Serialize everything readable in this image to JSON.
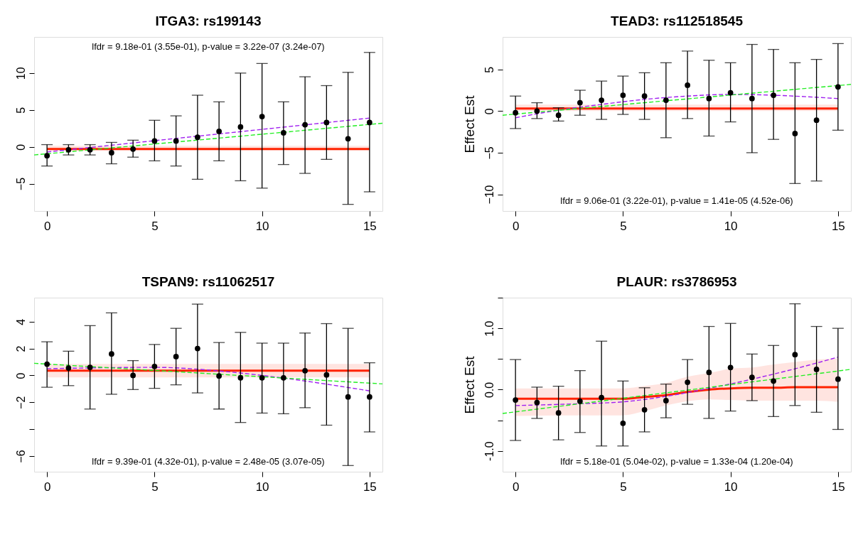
{
  "chart_data": [
    {
      "type": "scatter",
      "title": "ITGA3: rs199143",
      "x": [
        0,
        1,
        2,
        3,
        4,
        5,
        6,
        7,
        8,
        9,
        10,
        11,
        12,
        13,
        14,
        15
      ],
      "xlim": [
        -0.6,
        15.6
      ],
      "xticks": [
        0,
        5,
        10,
        15
      ],
      "ylim": [
        -8.7,
        14.9
      ],
      "yticks": [
        -5,
        0,
        5,
        10
      ],
      "grid": false,
      "annotations": [
        "lfdr = 9.18e-01 (3.55e-01), p-value = 3.22e-07 (3.24e-07)"
      ],
      "series": [
        {
          "type": "line",
          "color": "#ff2200",
          "x": [
            0,
            15
          ],
          "values": [
            -0.3,
            -0.3
          ],
          "lower": [
            -0.5,
            -0.5
          ],
          "upper": [
            0.15,
            0.15
          ]
        },
        {
          "type": "line",
          "color": "#a020f0",
          "line_style": "dashed",
          "x": [
            0,
            15
          ],
          "values": [
            -0.7,
            3.9
          ]
        },
        {
          "type": "line",
          "color": "#22ee22",
          "line_style": "dashed",
          "x": [
            -0.6,
            15.6
          ],
          "values": [
            -1.1,
            3.2
          ]
        },
        {
          "color": "#000000",
          "marker": "circle",
          "values": [
            -1.2,
            -0.4,
            -0.4,
            -0.8,
            -0.3,
            0.8,
            0.8,
            1.3,
            2.1,
            2.7,
            4.1,
            1.9,
            3.0,
            3.3,
            1.1,
            3.3
          ],
          "errors": [
            [
              -2.6,
              0.3
            ],
            [
              -1.1,
              0.3
            ],
            [
              -1.1,
              0.3
            ],
            [
              -2.3,
              0.6
            ],
            [
              -1.4,
              0.9
            ],
            [
              -1.9,
              3.6
            ],
            [
              -2.6,
              4.2
            ],
            [
              -4.4,
              7.0
            ],
            [
              -1.9,
              6.1
            ],
            [
              -4.6,
              10.0
            ],
            [
              -5.6,
              11.3
            ],
            [
              -2.4,
              6.1
            ],
            [
              -3.6,
              9.5
            ],
            [
              -1.7,
              8.3
            ],
            [
              -7.8,
              10.1
            ],
            [
              -6.1,
              12.8
            ]
          ]
        }
      ]
    },
    {
      "type": "scatter",
      "title": "TEAD3: rs112518545",
      "ylabel": "Effect Est",
      "x": [
        0,
        1,
        2,
        3,
        4,
        5,
        6,
        7,
        8,
        9,
        10,
        11,
        12,
        13,
        14,
        15
      ],
      "xlim": [
        -0.6,
        15.6
      ],
      "xticks": [
        0,
        5,
        10,
        15
      ],
      "ylim": [
        -12.0,
        8.9
      ],
      "yticks": [
        -10,
        -5,
        0,
        5
      ],
      "grid": false,
      "annotations": [
        "lfdr = 9.06e-01 (3.22e-01), p-value = 1.41e-05 (4.52e-06)"
      ],
      "series": [
        {
          "type": "line",
          "color": "#ff2200",
          "x": [
            0,
            15
          ],
          "values": [
            0.3,
            0.3
          ],
          "lower": [
            0.0,
            0.0
          ],
          "upper": [
            0.77,
            0.77
          ]
        },
        {
          "type": "line",
          "color": "#a020f0",
          "line_style": "dashed",
          "x": [
            0,
            2,
            4,
            6,
            8,
            10,
            12,
            15
          ],
          "values": [
            -0.8,
            0.1,
            0.8,
            1.4,
            1.8,
            2.0,
            1.9,
            1.5
          ]
        },
        {
          "type": "line",
          "color": "#22ee22",
          "line_style": "dashed",
          "x": [
            -0.6,
            15.6
          ],
          "values": [
            -0.5,
            3.2
          ]
        },
        {
          "color": "#000000",
          "marker": "circle",
          "values": [
            -0.2,
            0.0,
            -0.5,
            1.0,
            1.3,
            1.9,
            1.8,
            1.3,
            3.1,
            1.5,
            2.2,
            1.5,
            1.9,
            -2.7,
            -1.1,
            2.9
          ],
          "errors": [
            [
              -2.1,
              1.8
            ],
            [
              -0.9,
              1.0
            ],
            [
              -1.2,
              0.4
            ],
            [
              -0.5,
              2.5
            ],
            [
              -1.0,
              3.6
            ],
            [
              -0.4,
              4.2
            ],
            [
              -1.0,
              4.6
            ],
            [
              -3.2,
              5.8
            ],
            [
              -0.9,
              7.2
            ],
            [
              -3.0,
              6.1
            ],
            [
              -1.3,
              5.8
            ],
            [
              -5.0,
              8.0
            ],
            [
              -3.4,
              7.4
            ],
            [
              -8.7,
              5.8
            ],
            [
              -8.4,
              6.2
            ],
            [
              -2.3,
              8.1
            ]
          ]
        }
      ]
    },
    {
      "type": "scatter",
      "title": "TSPAN9: rs11062517",
      "x": [
        0,
        1,
        2,
        3,
        4,
        5,
        6,
        7,
        8,
        9,
        10,
        11,
        12,
        13,
        14,
        15
      ],
      "xlim": [
        -0.6,
        15.6
      ],
      "xticks": [
        0,
        5,
        10,
        15
      ],
      "ylim": [
        -7.16,
        5.78
      ],
      "yticks": [
        -6,
        {
          "value": -4,
          "label": null
        },
        -2,
        0,
        2,
        4
      ],
      "grid": false,
      "annotations": [
        "lfdr = 9.39e-01 (4.32e-01), p-value = 2.48e-05 (3.07e-05)"
      ],
      "series": [
        {
          "type": "line",
          "color": "#ff2200",
          "x": [
            0,
            15
          ],
          "values": [
            0.35,
            0.35
          ],
          "lower": [
            -0.15,
            -0.15
          ],
          "upper": [
            0.85,
            0.85
          ]
        },
        {
          "type": "line",
          "color": "#a020f0",
          "line_style": "dashed",
          "x": [
            0,
            5,
            8,
            10,
            15
          ],
          "values": [
            0.5,
            0.6,
            0.33,
            0.0,
            -1.15
          ]
        },
        {
          "type": "line",
          "color": "#22ee22",
          "line_style": "dashed",
          "x": [
            -0.6,
            15.6
          ],
          "values": [
            0.9,
            -0.63
          ]
        },
        {
          "color": "#000000",
          "marker": "circle",
          "values": [
            0.84,
            0.55,
            0.6,
            1.6,
            0.0,
            0.67,
            1.4,
            2.0,
            -0.04,
            -0.18,
            -0.18,
            -0.18,
            0.35,
            0.04,
            -1.6,
            -1.6
          ],
          "errors": [
            [
              -0.88,
              2.5
            ],
            [
              -0.76,
              1.8
            ],
            [
              -2.5,
              3.7
            ],
            [
              -1.4,
              4.65
            ],
            [
              -1.05,
              1.1
            ],
            [
              -0.96,
              2.3
            ],
            [
              -0.7,
              3.5
            ],
            [
              -1.3,
              5.3
            ],
            [
              -2.5,
              2.45
            ],
            [
              -3.5,
              3.2
            ],
            [
              -2.8,
              2.4
            ],
            [
              -2.85,
              2.4
            ],
            [
              -2.4,
              3.15
            ],
            [
              -3.7,
              3.85
            ],
            [
              -6.7,
              3.5
            ],
            [
              -4.2,
              0.94
            ]
          ]
        }
      ]
    },
    {
      "type": "scatter",
      "title": "PLAUR: rs3786953",
      "ylabel": "Effect Est",
      "x": [
        0,
        1,
        2,
        3,
        4,
        5,
        6,
        7,
        8,
        9,
        10,
        11,
        12,
        13,
        14,
        15
      ],
      "xlim": [
        -0.6,
        15.6
      ],
      "xticks": [
        0,
        5,
        10,
        15
      ],
      "ylim": [
        -1.34,
        1.5
      ],
      "yticks": [
        {
          "value": -1.0,
          "label": "-1.0"
        },
        {
          "value": -0.5,
          "label": null
        },
        {
          "value": 0.0,
          "label": "0.0"
        },
        {
          "value": 0.5,
          "label": null
        },
        {
          "value": 1.0,
          "label": "1.0"
        },
        {
          "value": 1.5,
          "label": null
        }
      ],
      "grid": false,
      "annotations": [
        "lfdr = 5.18e-01 (5.04e-02), p-value = 1.33e-04 (1.20e-04)"
      ],
      "series": [
        {
          "type": "line",
          "color": "#ff2200",
          "x": [
            0,
            3,
            5,
            6,
            7,
            8,
            9,
            10,
            11,
            12,
            13,
            14,
            15
          ],
          "values": [
            -0.15,
            -0.15,
            -0.15,
            -0.12,
            -0.09,
            -0.04,
            0.0,
            0.02,
            0.03,
            0.03,
            0.04,
            0.04,
            0.04
          ],
          "lower": [
            -0.43,
            -0.42,
            -0.42,
            -0.35,
            -0.26,
            -0.19,
            -0.16,
            -0.17,
            -0.18,
            -0.18,
            -0.18,
            -0.18,
            -0.2
          ],
          "upper": [
            0.02,
            0.02,
            0.02,
            0.06,
            0.11,
            0.21,
            0.27,
            0.34,
            0.36,
            0.41,
            0.45,
            0.49,
            0.51
          ]
        },
        {
          "type": "line",
          "color": "#a020f0",
          "line_style": "dashed",
          "x": [
            0,
            3,
            5,
            7,
            9,
            11,
            13,
            15
          ],
          "values": [
            -0.26,
            -0.23,
            -0.2,
            -0.11,
            0.02,
            0.17,
            0.34,
            0.53
          ]
        },
        {
          "type": "line",
          "color": "#22ee22",
          "line_style": "dashed",
          "x": [
            -0.6,
            15.6
          ],
          "values": [
            -0.39,
            0.33
          ]
        },
        {
          "color": "#000000",
          "marker": "circle",
          "values": [
            -0.17,
            -0.21,
            -0.38,
            -0.19,
            -0.13,
            -0.55,
            -0.33,
            -0.18,
            0.12,
            0.28,
            0.36,
            0.2,
            0.14,
            0.57,
            0.33,
            0.17
          ],
          "errors": [
            [
              -0.83,
              0.49
            ],
            [
              -0.47,
              0.04
            ],
            [
              -0.82,
              0.055
            ],
            [
              -0.7,
              0.31
            ],
            [
              -0.92,
              0.79
            ],
            [
              -0.92,
              0.14
            ],
            [
              -0.69,
              0.03
            ],
            [
              -0.46,
              0.09
            ],
            [
              -0.24,
              0.49
            ],
            [
              -0.47,
              1.03
            ],
            [
              -0.35,
              1.08
            ],
            [
              -0.18,
              0.58
            ],
            [
              -0.44,
              0.72
            ],
            [
              -0.26,
              1.4
            ],
            [
              -0.37,
              1.03
            ],
            [
              -0.65,
              1.0
            ]
          ]
        }
      ]
    }
  ]
}
